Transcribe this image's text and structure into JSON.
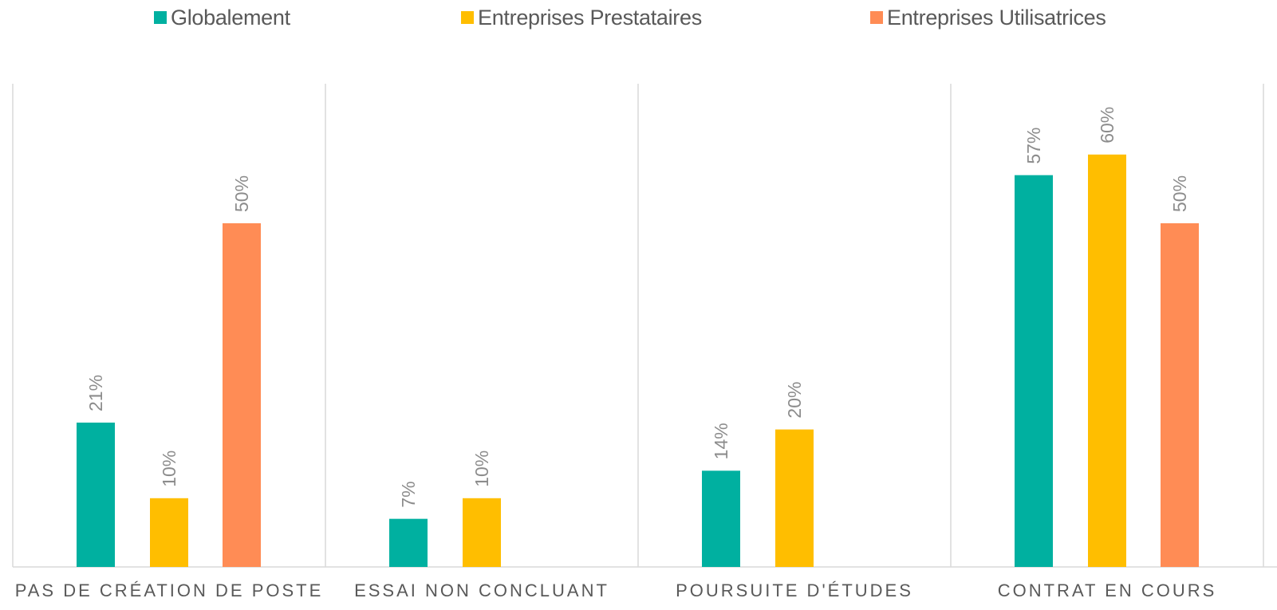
{
  "colors": {
    "Globalement": "#00B0A0",
    "Entreprises Prestataires": "#FFBE00",
    "Entreprises Utilisatrices": "#FF8C55",
    "gridline": "#d9d9d9",
    "label_text": "#8c8c8c",
    "category_text": "#595959"
  },
  "chart_data": {
    "type": "bar",
    "categories": [
      "PAS DE CRÉATION DE POSTE",
      "ESSAI NON CONCLUANT",
      "POURSUITE D'ÉTUDES",
      "CONTRAT EN COURS"
    ],
    "series": [
      {
        "name": "Globalement",
        "values": [
          21,
          7,
          14,
          57
        ],
        "labels": [
          "21%",
          "7%",
          "14%",
          "57%"
        ]
      },
      {
        "name": "Entreprises Prestataires",
        "values": [
          10,
          10,
          20,
          60
        ],
        "labels": [
          "10%",
          "10%",
          "20%",
          "60%"
        ]
      },
      {
        "name": "Entreprises Utilisatrices",
        "values": [
          50,
          null,
          null,
          50
        ],
        "labels": [
          "50%",
          null,
          null,
          "50%"
        ]
      }
    ],
    "title": "",
    "xlabel": "",
    "ylabel": "",
    "ylim": [
      0,
      70
    ],
    "legend": "top",
    "grid": false,
    "value_unit": "%"
  }
}
